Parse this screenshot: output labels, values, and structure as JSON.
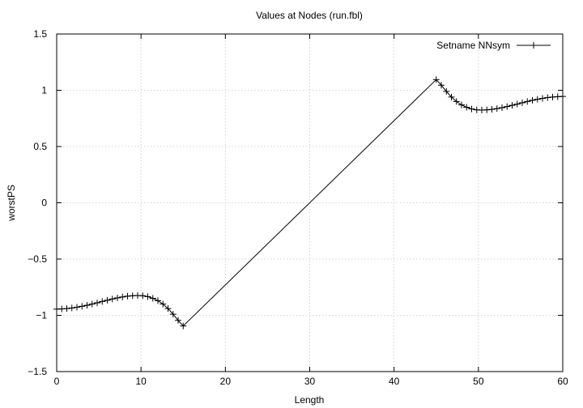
{
  "chart_data": {
    "type": "line",
    "title": "Values at Nodes (run.fbl)",
    "xlabel": "Length",
    "ylabel": "worstPS",
    "xlim": [
      0,
      60
    ],
    "ylim": [
      -1.5,
      1.5
    ],
    "xticks": [
      0,
      10,
      20,
      30,
      40,
      50,
      60
    ],
    "yticks": [
      -1.5,
      -1,
      -0.5,
      0,
      0.5,
      1,
      1.5
    ],
    "xtick_labels": [
      "0",
      "10",
      "20",
      "30",
      "40",
      "50",
      "60"
    ],
    "ytick_labels": [
      "−1.5",
      "−1",
      "−0.5",
      "0",
      "0.5",
      "1",
      "1.5"
    ],
    "grid": true,
    "legend_position": "top-right",
    "series": [
      {
        "name": "Setname NNsym",
        "marker": "plus",
        "color": "#000000",
        "x": [
          0,
          0.6,
          1.2,
          1.8,
          2.4,
          3,
          3.6,
          4.2,
          4.8,
          5.4,
          6,
          6.6,
          7.2,
          7.8,
          8.4,
          9,
          9.6,
          10.2,
          10.8,
          11.4,
          12,
          12.6,
          13.2,
          13.8,
          14.4,
          15,
          45,
          45.6,
          46.2,
          46.8,
          47.4,
          48,
          48.6,
          49.2,
          49.8,
          50.4,
          51,
          51.6,
          52.2,
          52.8,
          53.4,
          54,
          54.6,
          55.2,
          55.8,
          56.4,
          57,
          57.6,
          58.2,
          58.8,
          59.4,
          60
        ],
        "y": [
          -0.945,
          -0.943,
          -0.94,
          -0.935,
          -0.928,
          -0.92,
          -0.911,
          -0.9,
          -0.889,
          -0.877,
          -0.866,
          -0.855,
          -0.845,
          -0.837,
          -0.83,
          -0.826,
          -0.824,
          -0.826,
          -0.834,
          -0.849,
          -0.87,
          -0.9,
          -0.94,
          -0.99,
          -1.045,
          -1.095,
          1.095,
          1.045,
          0.99,
          0.94,
          0.9,
          0.87,
          0.849,
          0.834,
          0.826,
          0.824,
          0.826,
          0.83,
          0.837,
          0.845,
          0.855,
          0.866,
          0.877,
          0.889,
          0.9,
          0.911,
          0.92,
          0.928,
          0.935,
          0.94,
          0.943,
          0.945
        ]
      }
    ]
  }
}
